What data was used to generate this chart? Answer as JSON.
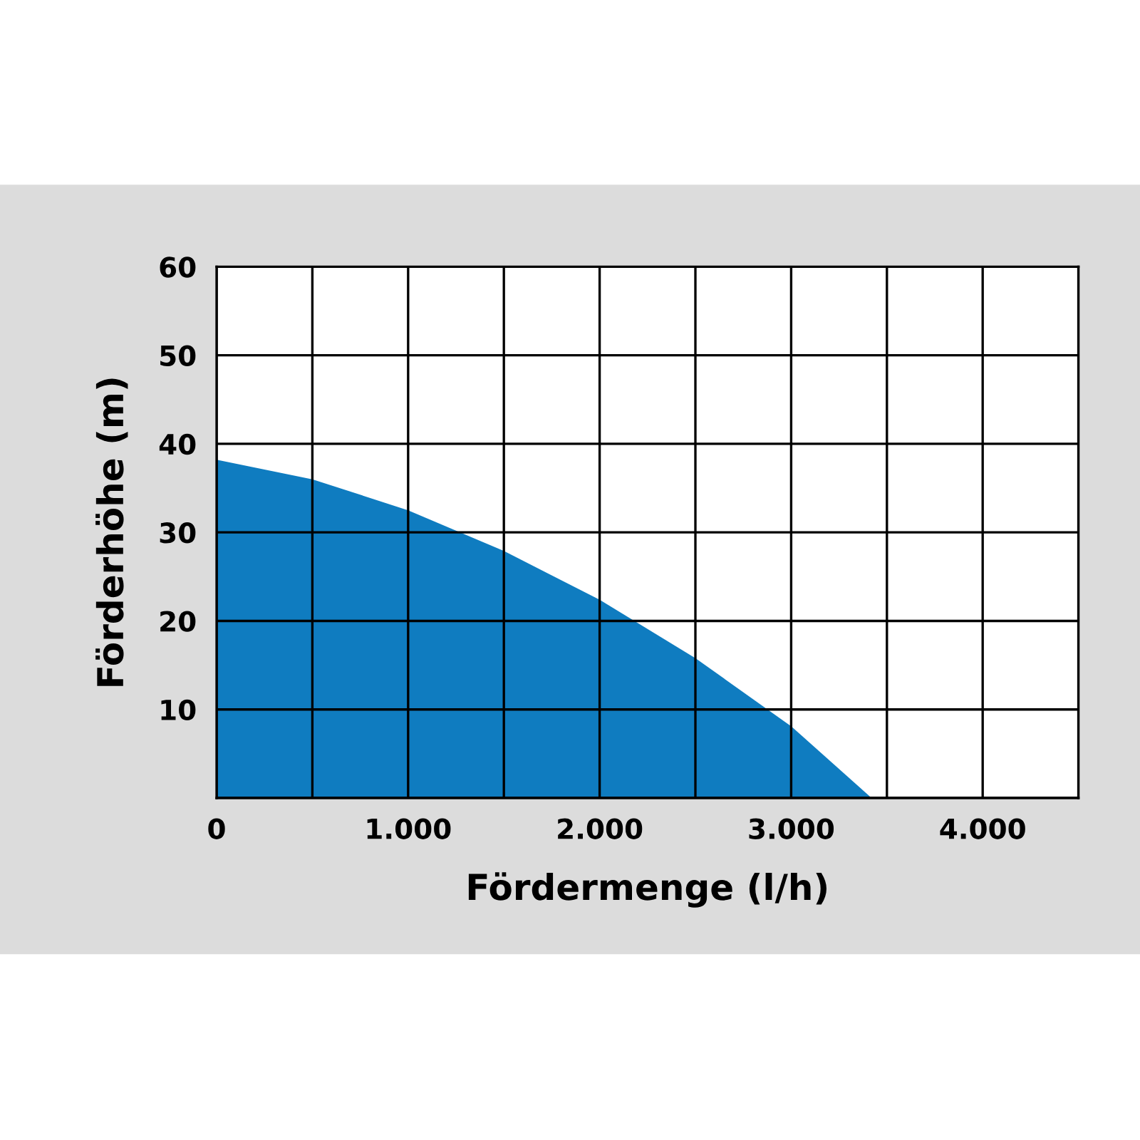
{
  "chart_data": {
    "type": "area",
    "xlabel": "Fördermenge (l/h)",
    "ylabel": "Förderhöhe (m)",
    "x": [
      0,
      500,
      1000,
      1500,
      2000,
      2500,
      3000,
      3420
    ],
    "series": [
      {
        "color": "#0f7cc0",
        "values": [
          38.2,
          36.0,
          32.5,
          27.9,
          22.4,
          15.8,
          8.1,
          0
        ]
      }
    ],
    "xlim": [
      0,
      4500
    ],
    "ylim": [
      0,
      60
    ],
    "xticks": [
      0,
      {
        "value": 500,
        "label": null
      },
      {
        "value": 1000,
        "label": "1.000"
      },
      {
        "value": 1500,
        "label": null
      },
      {
        "value": 2000,
        "label": "2.000"
      },
      {
        "value": 2500,
        "label": null
      },
      {
        "value": 3000,
        "label": "3.000"
      },
      {
        "value": 3500,
        "label": null
      },
      {
        "value": 4000,
        "label": "4.000"
      },
      {
        "value": 4500,
        "label": null
      }
    ],
    "yticks": [
      {
        "value": 0,
        "label": null
      },
      10,
      20,
      30,
      40,
      50,
      60
    ],
    "grid": true
  }
}
